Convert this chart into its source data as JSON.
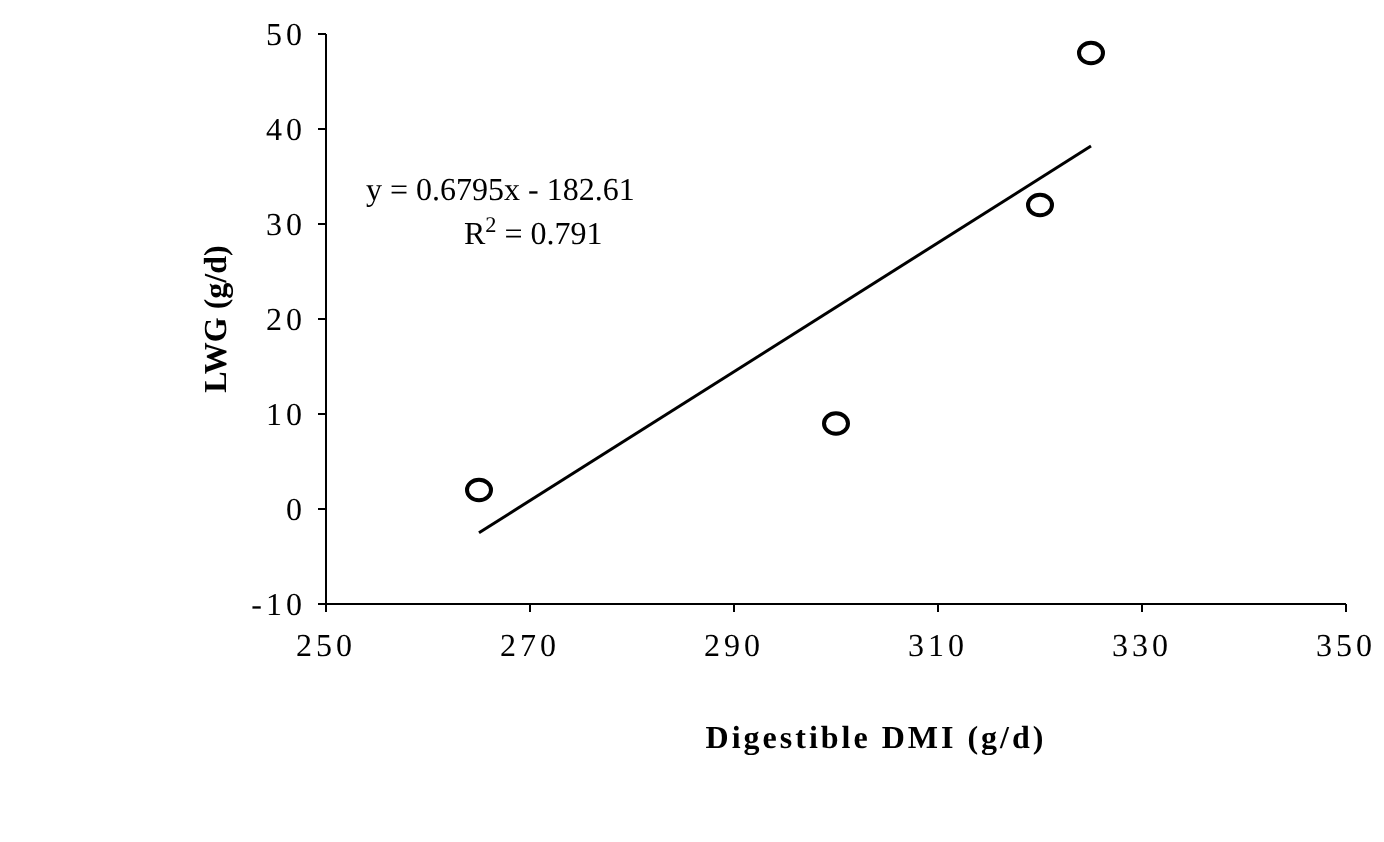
{
  "chart_data": {
    "type": "scatter",
    "xlabel": "Digestible DMI (g/d)",
    "ylabel": "LWG (g/d)",
    "xlim": [
      250,
      350
    ],
    "xticks": [
      250,
      270,
      290,
      310,
      330,
      350
    ],
    "ylim": [
      -10,
      50
    ],
    "yticks": [
      -10,
      0,
      10,
      20,
      30,
      40,
      50
    ],
    "grid": false,
    "marker": "circle",
    "series": [
      {
        "color": "#000000",
        "x": [
          265,
          300,
          320,
          325
        ],
        "values": [
          2,
          9,
          32,
          48
        ]
      },
      {
        "type": "line",
        "color": "#000000",
        "x": [
          265,
          325
        ],
        "values": [
          -2.5,
          38.2
        ],
        "line_style": "solid",
        "marker": "none"
      }
    ],
    "annotations": [
      "y = 0.6795x - 182.61",
      "R$^{2}$ = 0.791"
    ]
  }
}
